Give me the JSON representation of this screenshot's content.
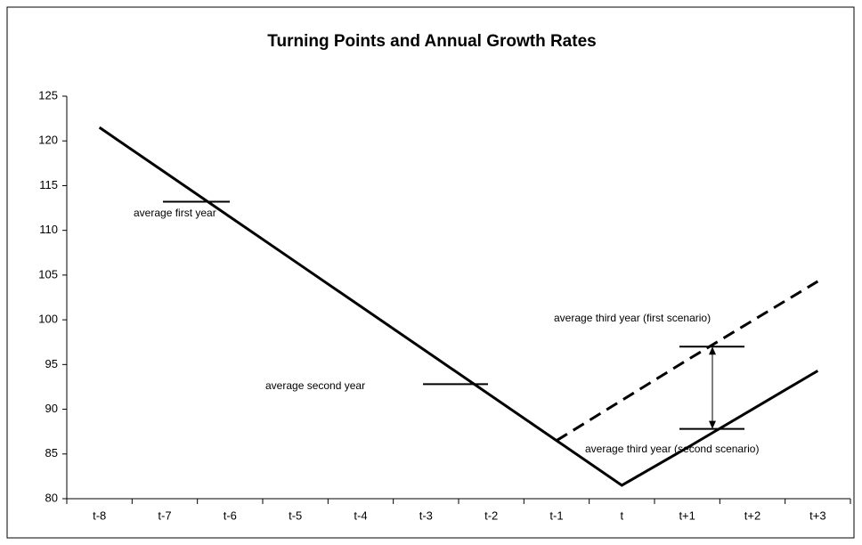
{
  "chart_data": {
    "type": "line",
    "title": "Turning Points and Annual Growth Rates",
    "categories": [
      "t-8",
      "t-7",
      "t-6",
      "t-5",
      "t-4",
      "t-3",
      "t-2",
      "t-1",
      "t",
      "t+1",
      "t+2",
      "t+3"
    ],
    "series": [
      {
        "color": "#000000",
        "line_style": "solid",
        "values": [
          121.5,
          116.5,
          111.5,
          106.5,
          101.5,
          96.5,
          91.5,
          86.5,
          81.5,
          85.7,
          90,
          94.3
        ]
      },
      {
        "color": "#000000",
        "line_style": "dashed",
        "values": [
          null,
          null,
          null,
          null,
          null,
          null,
          null,
          86.5,
          91,
          95.5,
          99.9,
          104.3
        ]
      }
    ],
    "annotations": [
      {
        "label": "average first year",
        "value": 113.2
      },
      {
        "label": "average second year",
        "value": 92.8
      },
      {
        "label": "average third year (first scenario)",
        "value": 97
      },
      {
        "label": "average third year (second scenario)",
        "value": 87.8
      }
    ],
    "ylim": [
      80,
      125
    ],
    "yticks": [
      80,
      85,
      90,
      95,
      100,
      105,
      110,
      115,
      120,
      125
    ],
    "grid": false
  }
}
